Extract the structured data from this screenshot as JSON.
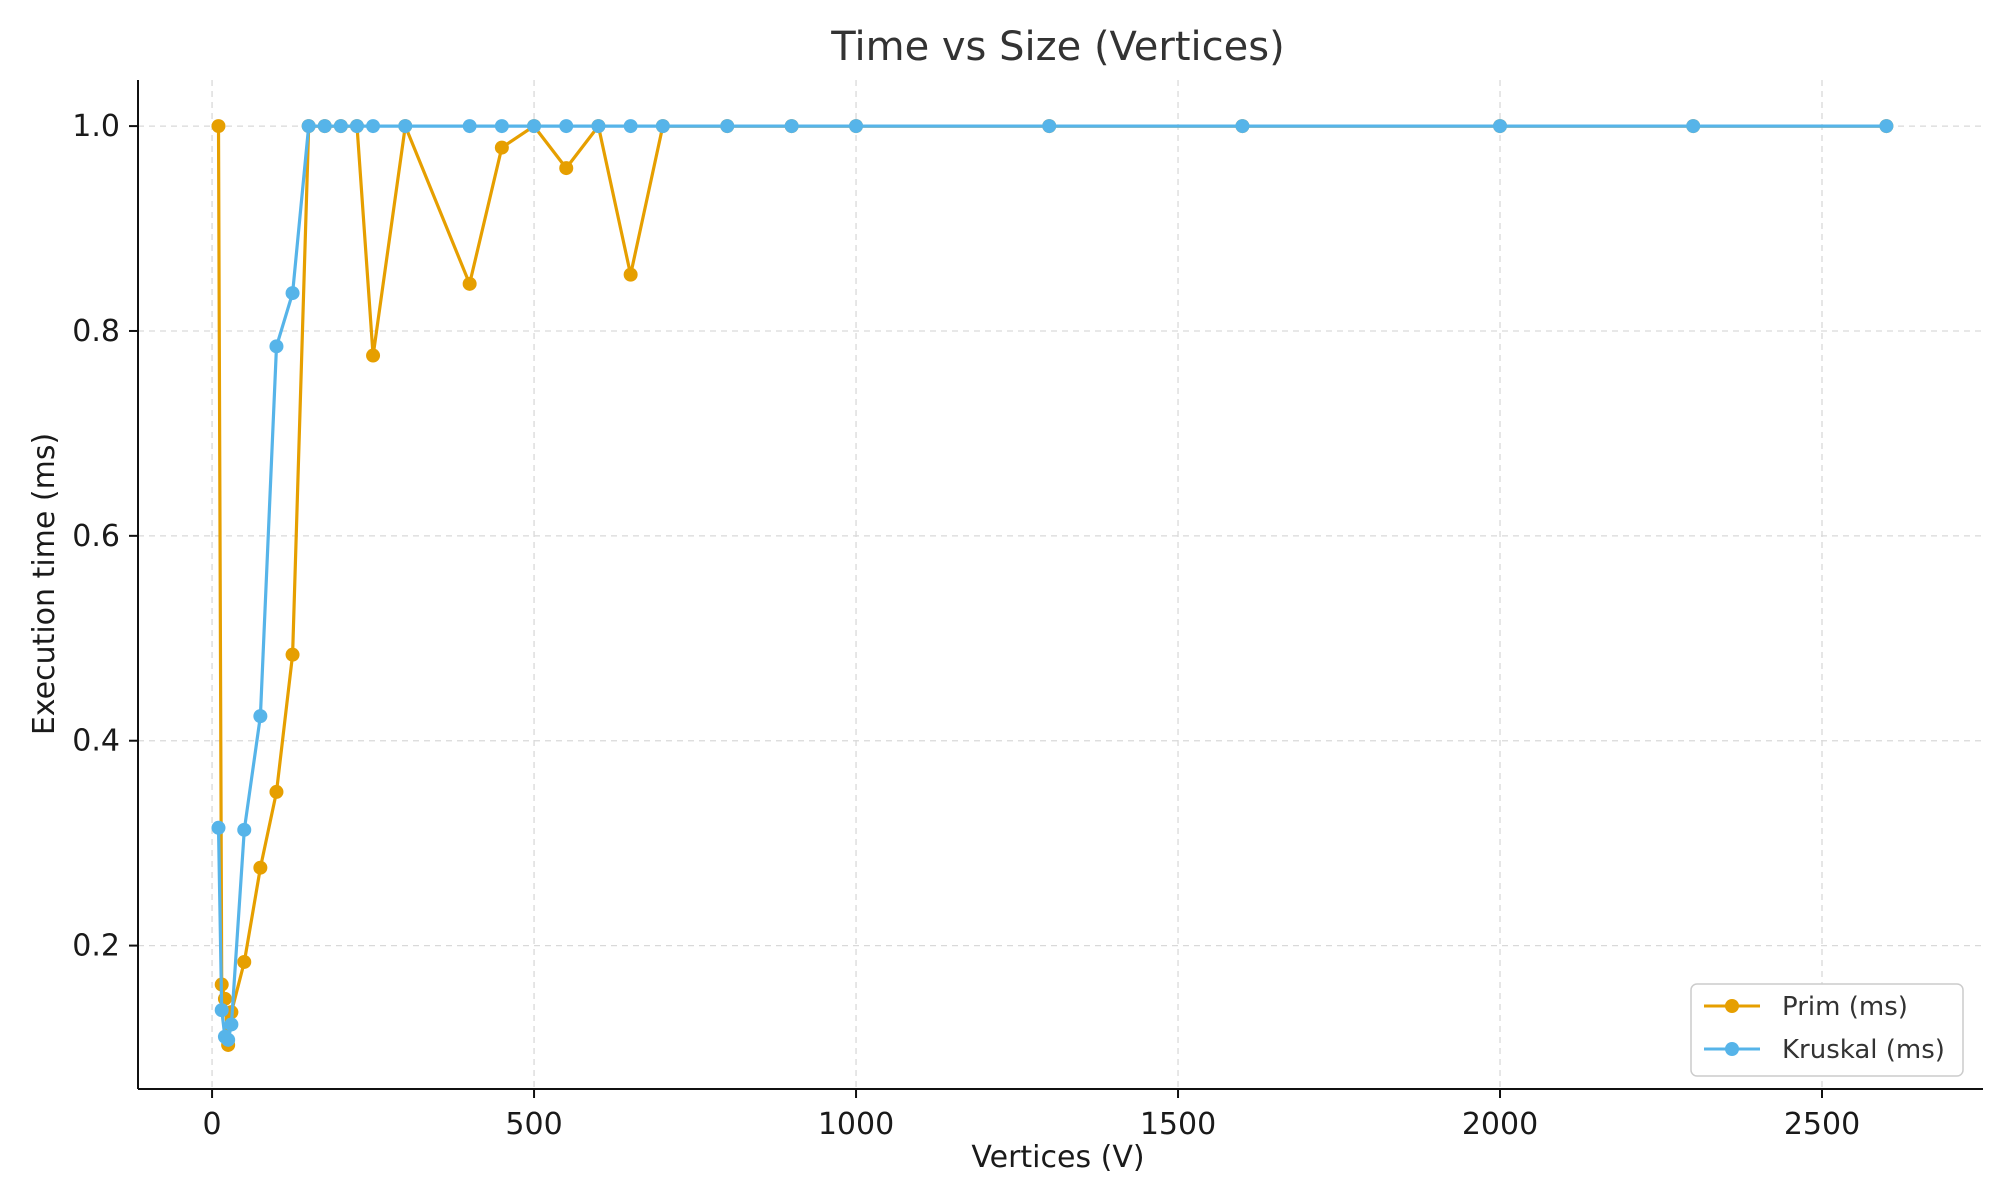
{
  "chart_data": {
    "type": "line",
    "title": "Time vs Size (Vertices)",
    "xlabel": "Vertices (V)",
    "ylabel": "Execution time (ms)",
    "xlim": [
      -115,
      2750
    ],
    "ylim": [
      0.06,
      1.045
    ],
    "xticks": [
      0,
      500,
      1000,
      1500,
      2000,
      2500
    ],
    "yticks": [
      0.2,
      0.4,
      0.6,
      0.8,
      1.0
    ],
    "ytick_labels": [
      "0.2",
      "0.4",
      "0.6",
      "0.8",
      "1.0"
    ],
    "grid": true,
    "legend_position": "bottom-right",
    "series": [
      {
        "name": "Prim (ms)",
        "color": "#E69F00",
        "points": [
          [
            10,
            1.0
          ],
          [
            15,
            0.162
          ],
          [
            20,
            0.148
          ],
          [
            25,
            0.103
          ],
          [
            30,
            0.135
          ],
          [
            50,
            0.184
          ],
          [
            75,
            0.276
          ],
          [
            100,
            0.35
          ],
          [
            125,
            0.484
          ],
          [
            150,
            1.0
          ],
          [
            175,
            1.0
          ],
          [
            200,
            1.0
          ],
          [
            225,
            1.0
          ],
          [
            250,
            0.776
          ],
          [
            300,
            1.0
          ],
          [
            400,
            0.846
          ],
          [
            450,
            0.979
          ],
          [
            500,
            1.0
          ],
          [
            550,
            0.959
          ],
          [
            600,
            1.0
          ],
          [
            650,
            0.855
          ],
          [
            700,
            1.0
          ],
          [
            800,
            1.0
          ],
          [
            900,
            1.0
          ],
          [
            1000,
            1.0
          ],
          [
            1300,
            1.0
          ],
          [
            1600,
            1.0
          ],
          [
            2000,
            1.0
          ],
          [
            2300,
            1.0
          ],
          [
            2600,
            1.0
          ]
        ]
      },
      {
        "name": "Kruskal (ms)",
        "color": "#56B4E9",
        "points": [
          [
            10,
            0.315
          ],
          [
            15,
            0.137
          ],
          [
            20,
            0.111
          ],
          [
            25,
            0.108
          ],
          [
            30,
            0.123
          ],
          [
            50,
            0.313
          ],
          [
            75,
            0.424
          ],
          [
            100,
            0.785
          ],
          [
            125,
            0.837
          ],
          [
            150,
            1.0
          ],
          [
            175,
            1.0
          ],
          [
            200,
            1.0
          ],
          [
            225,
            1.0
          ],
          [
            250,
            1.0
          ],
          [
            300,
            1.0
          ],
          [
            400,
            1.0
          ],
          [
            450,
            1.0
          ],
          [
            500,
            1.0
          ],
          [
            550,
            1.0
          ],
          [
            600,
            1.0
          ],
          [
            650,
            1.0
          ],
          [
            700,
            1.0
          ],
          [
            800,
            1.0
          ],
          [
            900,
            1.0
          ],
          [
            1000,
            1.0
          ],
          [
            1300,
            1.0
          ],
          [
            1600,
            1.0
          ],
          [
            2000,
            1.0
          ],
          [
            2300,
            1.0
          ],
          [
            2600,
            1.0
          ]
        ]
      }
    ]
  }
}
